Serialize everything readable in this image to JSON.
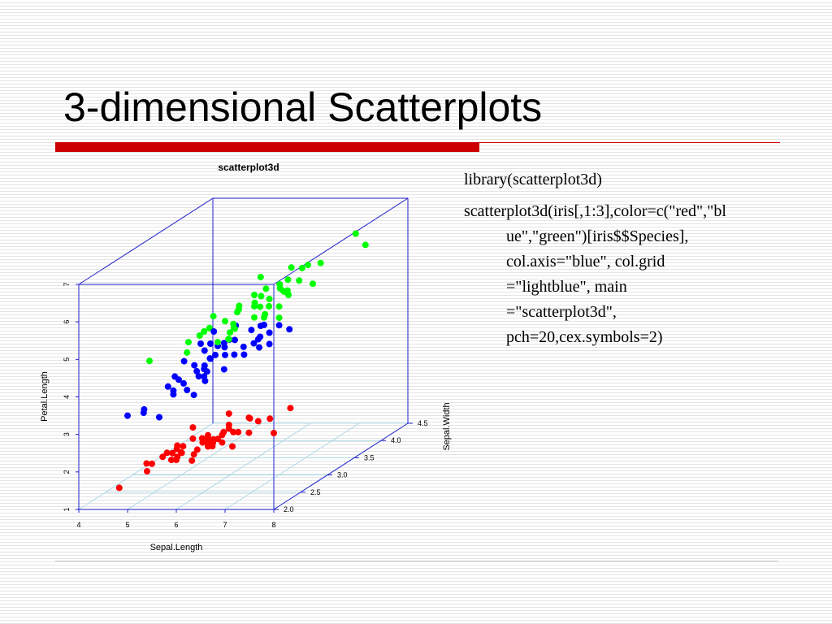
{
  "slide": {
    "title": "3-dimensional Scatterplots",
    "code": [
      {
        "parts": [
          "library(scatterplot3d)"
        ]
      },
      {
        "parts": [
          "scatterplot3d(iris[,1:3],color=c(\"red\",\"bl",
          "ue\",\"green\")[iris$$Species],",
          "col.axis=\"blue\", col.grid",
          "=\"lightblue\", main",
          "=\"scatterplot3d\",",
          "pch=20,cex.symbols=2)"
        ]
      }
    ]
  },
  "colors": {
    "accent_bar": "#cc0000",
    "axis": "#2222cc",
    "grid": "#add8e6",
    "series": [
      "#ff0000",
      "#0000ff",
      "#00ff00"
    ]
  },
  "chart_data": {
    "type": "scatter",
    "title": "scatterplot3d",
    "xlabel": "Sepal.Length",
    "ylabel": "Sepal.Width",
    "zlabel": "Petal.Length",
    "xlim": [
      4,
      8
    ],
    "ylim": [
      2,
      4.5
    ],
    "zlim": [
      1,
      7
    ],
    "x_ticks": [
      "4",
      "5",
      "6",
      "7",
      "8"
    ],
    "y_ticks": [
      "2.0",
      "2.5",
      "3.0",
      "3.5",
      "4.0",
      "4.5"
    ],
    "z_ticks": [
      "1",
      "2",
      "3",
      "4",
      "5",
      "6",
      "7"
    ],
    "grid": true,
    "series": [
      {
        "color": "#ff0000",
        "points": [
          [
            5.1,
            3.5,
            1.4
          ],
          [
            4.9,
            3.0,
            1.4
          ],
          [
            4.7,
            3.2,
            1.3
          ],
          [
            4.6,
            3.1,
            1.5
          ],
          [
            5.0,
            3.6,
            1.4
          ],
          [
            5.4,
            3.9,
            1.7
          ],
          [
            4.6,
            3.4,
            1.4
          ],
          [
            5.0,
            3.4,
            1.5
          ],
          [
            4.4,
            2.9,
            1.4
          ],
          [
            4.9,
            3.1,
            1.5
          ],
          [
            5.4,
            3.7,
            1.5
          ],
          [
            4.8,
            3.4,
            1.6
          ],
          [
            4.8,
            3.0,
            1.4
          ],
          [
            4.3,
            3.0,
            1.1
          ],
          [
            5.8,
            4.0,
            1.2
          ],
          [
            5.7,
            4.4,
            1.5
          ],
          [
            5.4,
            3.9,
            1.3
          ],
          [
            5.1,
            3.5,
            1.4
          ],
          [
            5.7,
            3.8,
            1.7
          ],
          [
            5.1,
            3.8,
            1.5
          ],
          [
            5.4,
            3.4,
            1.7
          ],
          [
            5.1,
            3.7,
            1.5
          ],
          [
            4.6,
            3.6,
            1.0
          ],
          [
            5.1,
            3.3,
            1.7
          ],
          [
            4.8,
            3.4,
            1.9
          ],
          [
            5.0,
            3.0,
            1.6
          ],
          [
            5.0,
            3.4,
            1.6
          ],
          [
            5.2,
            3.5,
            1.5
          ],
          [
            5.2,
            3.4,
            1.4
          ],
          [
            4.7,
            3.2,
            1.6
          ],
          [
            4.8,
            3.1,
            1.6
          ],
          [
            5.4,
            3.4,
            1.5
          ],
          [
            5.2,
            4.1,
            1.5
          ],
          [
            5.5,
            4.2,
            1.4
          ],
          [
            4.9,
            3.1,
            1.5
          ],
          [
            5.0,
            3.2,
            1.2
          ],
          [
            5.5,
            3.5,
            1.3
          ],
          [
            4.9,
            3.6,
            1.4
          ],
          [
            4.4,
            3.0,
            1.3
          ],
          [
            5.1,
            3.4,
            1.5
          ],
          [
            5.0,
            3.5,
            1.3
          ],
          [
            4.5,
            2.3,
            1.3
          ],
          [
            4.4,
            3.2,
            1.3
          ],
          [
            5.0,
            3.5,
            1.6
          ],
          [
            5.1,
            3.8,
            1.9
          ],
          [
            4.8,
            3.0,
            1.4
          ],
          [
            5.1,
            3.8,
            1.6
          ],
          [
            4.6,
            3.2,
            1.4
          ],
          [
            5.3,
            3.7,
            1.5
          ],
          [
            5.0,
            3.3,
            1.4
          ]
        ]
      },
      {
        "color": "#0000ff",
        "points": [
          [
            7.0,
            3.2,
            4.7
          ],
          [
            6.4,
            3.2,
            4.5
          ],
          [
            6.9,
            3.1,
            4.9
          ],
          [
            5.5,
            2.3,
            4.0
          ],
          [
            6.5,
            2.8,
            4.6
          ],
          [
            5.7,
            2.8,
            4.5
          ],
          [
            6.3,
            3.3,
            4.7
          ],
          [
            4.9,
            2.4,
            3.3
          ],
          [
            6.6,
            2.9,
            4.6
          ],
          [
            5.2,
            2.7,
            3.9
          ],
          [
            5.0,
            2.0,
            3.5
          ],
          [
            5.9,
            3.0,
            4.2
          ],
          [
            6.0,
            2.2,
            4.0
          ],
          [
            6.1,
            2.9,
            4.7
          ],
          [
            5.6,
            2.9,
            3.6
          ],
          [
            6.7,
            3.1,
            4.4
          ],
          [
            5.6,
            3.0,
            4.5
          ],
          [
            5.8,
            2.7,
            4.1
          ],
          [
            6.2,
            2.2,
            4.5
          ],
          [
            5.6,
            2.5,
            3.9
          ],
          [
            5.9,
            3.2,
            4.8
          ],
          [
            6.1,
            2.8,
            4.0
          ],
          [
            6.3,
            2.5,
            4.9
          ],
          [
            6.1,
            2.8,
            4.7
          ],
          [
            6.4,
            2.9,
            4.3
          ],
          [
            6.6,
            3.0,
            4.4
          ],
          [
            6.8,
            2.8,
            4.8
          ],
          [
            6.7,
            3.0,
            5.0
          ],
          [
            6.0,
            2.9,
            4.5
          ],
          [
            5.7,
            2.6,
            3.5
          ],
          [
            5.5,
            2.4,
            3.8
          ],
          [
            5.5,
            2.4,
            3.7
          ],
          [
            5.8,
            2.7,
            3.9
          ],
          [
            6.0,
            2.7,
            5.1
          ],
          [
            5.4,
            3.0,
            4.5
          ],
          [
            6.0,
            3.4,
            4.5
          ],
          [
            6.7,
            3.1,
            4.7
          ],
          [
            6.3,
            2.3,
            4.4
          ],
          [
            5.6,
            3.0,
            4.1
          ],
          [
            5.5,
            2.5,
            4.0
          ],
          [
            5.5,
            2.6,
            4.4
          ],
          [
            6.1,
            3.0,
            4.6
          ],
          [
            5.8,
            2.6,
            4.0
          ],
          [
            5.0,
            2.3,
            3.3
          ],
          [
            5.6,
            2.7,
            4.2
          ],
          [
            5.7,
            3.0,
            4.2
          ],
          [
            5.7,
            2.9,
            4.2
          ],
          [
            6.2,
            2.9,
            4.3
          ],
          [
            5.1,
            2.5,
            3.0
          ],
          [
            5.7,
            2.8,
            4.1
          ]
        ]
      },
      {
        "color": "#00ff00",
        "points": [
          [
            6.3,
            3.3,
            6.0
          ],
          [
            5.8,
            2.7,
            5.1
          ],
          [
            7.1,
            3.0,
            5.9
          ],
          [
            6.3,
            2.9,
            5.6
          ],
          [
            6.5,
            3.0,
            5.8
          ],
          [
            7.6,
            3.0,
            6.6
          ],
          [
            4.9,
            2.5,
            4.5
          ],
          [
            7.3,
            2.9,
            6.3
          ],
          [
            6.7,
            2.5,
            5.8
          ],
          [
            7.2,
            3.6,
            6.1
          ],
          [
            6.5,
            3.2,
            5.1
          ],
          [
            6.4,
            2.7,
            5.3
          ],
          [
            6.8,
            3.0,
            5.5
          ],
          [
            5.7,
            2.5,
            5.0
          ],
          [
            5.8,
            2.8,
            5.1
          ],
          [
            6.4,
            3.2,
            5.3
          ],
          [
            6.5,
            3.0,
            5.5
          ],
          [
            7.7,
            3.8,
            6.7
          ],
          [
            7.7,
            2.6,
            6.9
          ],
          [
            6.0,
            2.2,
            5.0
          ],
          [
            6.9,
            3.2,
            5.7
          ],
          [
            5.6,
            2.8,
            4.9
          ],
          [
            7.7,
            2.8,
            6.7
          ],
          [
            6.3,
            2.7,
            4.9
          ],
          [
            6.7,
            3.3,
            5.7
          ],
          [
            7.2,
            3.2,
            6.0
          ],
          [
            6.2,
            2.8,
            4.8
          ],
          [
            6.1,
            3.0,
            4.9
          ],
          [
            6.4,
            2.8,
            5.6
          ],
          [
            7.2,
            3.0,
            5.8
          ],
          [
            7.4,
            2.8,
            6.1
          ],
          [
            7.9,
            3.8,
            6.4
          ],
          [
            6.4,
            2.8,
            5.6
          ],
          [
            6.3,
            2.8,
            5.1
          ],
          [
            6.1,
            2.6,
            5.6
          ],
          [
            7.7,
            3.0,
            6.1
          ],
          [
            6.3,
            3.4,
            5.6
          ],
          [
            6.4,
            3.1,
            5.5
          ],
          [
            6.0,
            3.0,
            4.8
          ],
          [
            6.9,
            3.1,
            5.4
          ],
          [
            6.7,
            3.1,
            5.6
          ],
          [
            6.9,
            3.1,
            5.1
          ],
          [
            5.8,
            2.7,
            5.1
          ],
          [
            6.8,
            3.2,
            5.9
          ],
          [
            6.7,
            3.3,
            5.7
          ],
          [
            6.7,
            3.0,
            5.2
          ],
          [
            6.3,
            2.5,
            5.0
          ],
          [
            6.5,
            3.0,
            5.2
          ],
          [
            6.2,
            3.4,
            5.4
          ],
          [
            5.9,
            3.0,
            5.1
          ]
        ]
      }
    ]
  }
}
